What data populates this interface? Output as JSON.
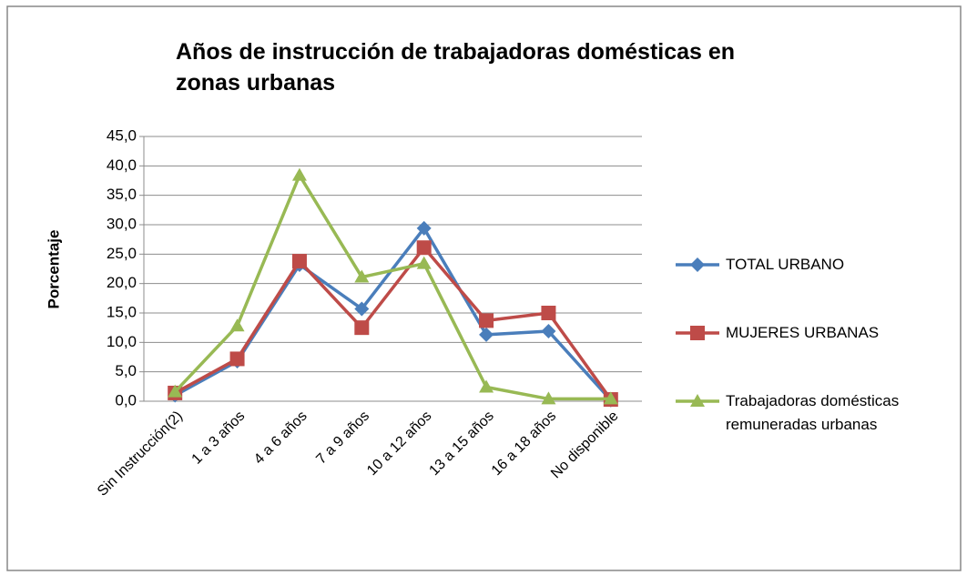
{
  "chart_data": {
    "type": "line",
    "title": "Años de instrucción de trabajadoras domésticas en zonas urbanas",
    "y_label": "Porcentaje",
    "categories": [
      "Sin Instrucción(2)",
      "1 a 3 años",
      "4 a 6 años",
      "7 a 9 años",
      "10 a 12 años",
      "13 a 15 años",
      "16 a 18 años",
      "No disponible"
    ],
    "series": [
      {
        "name": "TOTAL URBANO",
        "color": "#4a7ebb",
        "marker": "diamond",
        "values": [
          1.0,
          6.8,
          23.2,
          15.7,
          29.4,
          11.3,
          11.9,
          0.2
        ]
      },
      {
        "name": "MUJERES URBANAS",
        "color": "#be4b48",
        "marker": "square",
        "values": [
          1.4,
          7.2,
          23.8,
          12.5,
          26.1,
          13.7,
          15.0,
          0.3
        ]
      },
      {
        "name": "Trabajadoras domésticas remuneradas urbanas",
        "color": "#98b954",
        "marker": "triangle",
        "values": [
          1.6,
          12.8,
          38.4,
          21.1,
          23.4,
          2.4,
          0.4,
          0.4
        ]
      }
    ],
    "ylim": [
      0,
      45
    ],
    "yticks": [
      {
        "value": 0,
        "label": "0,0"
      },
      {
        "value": 5,
        "label": "5,0"
      },
      {
        "value": 10,
        "label": "10,0"
      },
      {
        "value": 15,
        "label": "15,0"
      },
      {
        "value": 20,
        "label": "20,0"
      },
      {
        "value": 25,
        "label": "25,0"
      },
      {
        "value": 30,
        "label": "30,0"
      },
      {
        "value": 35,
        "label": "35,0"
      },
      {
        "value": 40,
        "label": "40,0"
      },
      {
        "value": 45,
        "label": "45,0"
      }
    ],
    "grid": true,
    "legend": "right"
  }
}
